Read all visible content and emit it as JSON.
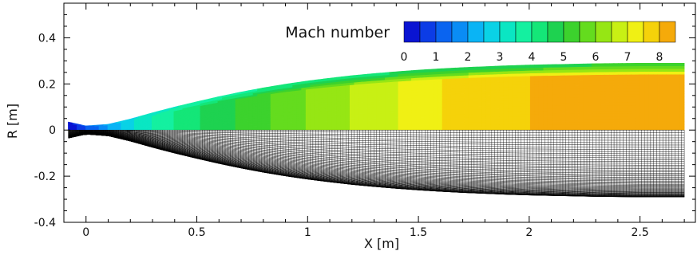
{
  "chart_data": {
    "type": "heatmap",
    "title": "",
    "xlabel": "X [m]",
    "ylabel": "R [m]",
    "xlim": [
      -0.1,
      2.75
    ],
    "ylim": [
      -0.4,
      0.55
    ],
    "xticks": [
      0,
      0.5,
      1,
      1.5,
      2,
      2.5
    ],
    "xtick_labels": [
      "0",
      "0.5",
      "1",
      "1.5",
      "2",
      "2.5"
    ],
    "yticks": [
      -0.4,
      -0.2,
      0,
      0.2,
      0.4
    ],
    "ytick_labels": [
      "-0.4",
      "-0.2",
      "0",
      "0.2",
      "0.4"
    ],
    "grid": false,
    "legend": {
      "title": "Mach number",
      "placement": "top-right",
      "range": [
        0,
        8.5
      ],
      "step": 0.5,
      "tick_values": [
        0,
        1,
        2,
        3,
        4,
        5,
        6,
        7,
        8
      ],
      "tick_labels": [
        "0",
        "1",
        "2",
        "3",
        "4",
        "5",
        "6",
        "7",
        "8"
      ]
    },
    "colormap": [
      "#0a14d2",
      "#0c3ce6",
      "#0a64f0",
      "#0a8cf5",
      "#0ab4f5",
      "#0ad2e6",
      "#0ae6c3",
      "#14f0a0",
      "#14e678",
      "#1ed250",
      "#3cd22d",
      "#64dc1e",
      "#96e614",
      "#c8f014",
      "#f0f014",
      "#f5d20a",
      "#f5aa0a",
      "#f58c0a",
      "#f0640a",
      "#e63c0a",
      "#e6140a"
    ],
    "nozzle_wall": {
      "x": [
        -0.08,
        0,
        0.1,
        0.2,
        0.3,
        0.4,
        0.5,
        0.6,
        0.7,
        0.8,
        0.9,
        1.0,
        1.1,
        1.2,
        1.3,
        1.4,
        1.5,
        1.6,
        1.7,
        1.8,
        1.9,
        2.0,
        2.1,
        2.2,
        2.3,
        2.4,
        2.5,
        2.6,
        2.7
      ],
      "r": [
        0.035,
        0.018,
        0.025,
        0.048,
        0.075,
        0.1,
        0.123,
        0.145,
        0.165,
        0.183,
        0.199,
        0.213,
        0.225,
        0.236,
        0.245,
        0.253,
        0.26,
        0.266,
        0.271,
        0.275,
        0.279,
        0.282,
        0.284,
        0.286,
        0.288,
        0.289,
        0.29,
        0.29,
        0.29
      ]
    },
    "mach_field": {
      "x_nodes": [
        -0.08,
        0,
        0.1,
        0.2,
        0.3,
        0.4,
        0.5,
        0.6,
        0.7,
        0.8,
        0.9,
        1.0,
        1.2,
        1.4,
        1.6,
        1.8,
        2.0,
        2.2,
        2.4,
        2.7
      ],
      "axis_mach": [
        0.2,
        1.0,
        2.0,
        2.9,
        3.5,
        4.0,
        4.4,
        4.8,
        5.1,
        5.4,
        5.7,
        6.0,
        6.5,
        7.0,
        7.5,
        7.9,
        8.0,
        8.0,
        8.0,
        8.0
      ],
      "wall_mach": [
        0.3,
        1.2,
        2.3,
        2.9,
        3.2,
        3.4,
        3.6,
        3.7,
        3.8,
        3.9,
        4.0,
        4.1,
        4.2,
        4.3,
        4.4,
        4.5,
        4.6,
        4.7,
        4.8,
        4.8
      ]
    }
  }
}
